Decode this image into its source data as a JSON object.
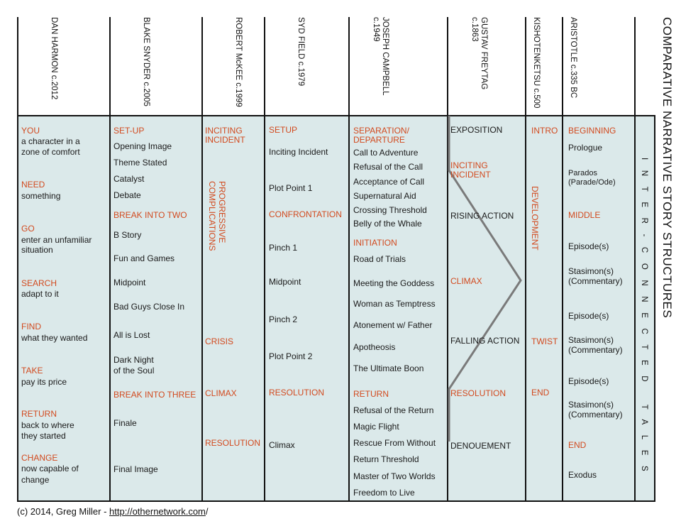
{
  "title": "COMPARATIVE NARRATIVE STORY STRUCTURES",
  "subtitle": "INTER-CONNECTED TALES",
  "footer": {
    "prefix": "(c) 2014, Greg Miller - ",
    "link": "http://othernetwork.com",
    "suffix": "/"
  },
  "colors": {
    "accent": "#d24a1f",
    "panel": "#dbe9ea",
    "curve": "#7a7a7a"
  },
  "columns": [
    {
      "header": "DAN HARMON c.2012",
      "items": [
        {
          "text": "YOU",
          "accent": true
        },
        {
          "text": "a character in a"
        },
        {
          "text": "zone of comfort"
        },
        {
          "text": "NEED",
          "accent": true
        },
        {
          "text": "something"
        },
        {
          "text": "GO",
          "accent": true
        },
        {
          "text": "enter an unfamiliar"
        },
        {
          "text": "situation"
        },
        {
          "text": "SEARCH",
          "accent": true
        },
        {
          "text": "adapt to it"
        },
        {
          "text": "FIND",
          "accent": true
        },
        {
          "text": "what they wanted"
        },
        {
          "text": "TAKE",
          "accent": true
        },
        {
          "text": "pay its price"
        },
        {
          "text": "RETURN",
          "accent": true
        },
        {
          "text": "back to where"
        },
        {
          "text": "they started"
        },
        {
          "text": "CHANGE",
          "accent": true
        },
        {
          "text": "now capable of"
        },
        {
          "text": "change"
        }
      ]
    },
    {
      "header": "BLAKE SNYDER c.2005",
      "items": [
        {
          "text": "SET-UP",
          "accent": true
        },
        {
          "text": "Opening Image"
        },
        {
          "text": "Theme Stated"
        },
        {
          "text": "Catalyst"
        },
        {
          "text": "Debate"
        },
        {
          "text": "BREAK INTO TWO",
          "accent": true
        },
        {
          "text": "B Story"
        },
        {
          "text": "Fun and Games"
        },
        {
          "text": "Midpoint"
        },
        {
          "text": "Bad Guys Close In"
        },
        {
          "text": "All is Lost"
        },
        {
          "text": "Dark Night"
        },
        {
          "text": "of the Soul"
        },
        {
          "text": "BREAK INTO THREE",
          "accent": true
        },
        {
          "text": "Finale"
        },
        {
          "text": "Final Image"
        }
      ]
    },
    {
      "header": "ROBERT McKEE c.1999",
      "items": [
        {
          "text": "INCITING",
          "accent": true
        },
        {
          "text": "INCIDENT",
          "accent": true
        },
        {
          "text": "PROGRESSIVE COMPLICATIONS",
          "accent": true,
          "vertical": true
        },
        {
          "text": "CRISIS",
          "accent": true
        },
        {
          "text": "CLIMAX",
          "accent": true
        },
        {
          "text": "RESOLUTION",
          "accent": true
        }
      ]
    },
    {
      "header": "SYD FIELD c.1979",
      "items": [
        {
          "text": "SETUP",
          "accent": true
        },
        {
          "text": "Inciting Incident"
        },
        {
          "text": "Plot Point 1"
        },
        {
          "text": "CONFRONTATION",
          "accent": true
        },
        {
          "text": "Pinch 1"
        },
        {
          "text": "Midpoint"
        },
        {
          "text": "Pinch 2"
        },
        {
          "text": "Plot Point 2"
        },
        {
          "text": "RESOLUTION",
          "accent": true
        },
        {
          "text": "Climax"
        }
      ]
    },
    {
      "header": "JOSEPH CAMPBELL c.1949",
      "items": [
        {
          "text": "SEPARATION/",
          "accent": true
        },
        {
          "text": "DEPARTURE",
          "accent": true
        },
        {
          "text": "Call to Adventure"
        },
        {
          "text": "Refusal of the Call"
        },
        {
          "text": "Acceptance of Call"
        },
        {
          "text": "Supernatural Aid"
        },
        {
          "text": "Crossing Threshold"
        },
        {
          "text": "Belly of the Whale"
        },
        {
          "text": "INITIATION",
          "accent": true
        },
        {
          "text": "Road of Trials"
        },
        {
          "text": "Meeting the Goddess"
        },
        {
          "text": "Woman as Temptress"
        },
        {
          "text": "Atonement w/ Father"
        },
        {
          "text": "Apotheosis"
        },
        {
          "text": "The Ultimate Boon"
        },
        {
          "text": "RETURN",
          "accent": true
        },
        {
          "text": "Refusal of the Return"
        },
        {
          "text": "Magic Flight"
        },
        {
          "text": "Rescue From Without"
        },
        {
          "text": "Return Threshold"
        },
        {
          "text": "Master of Two Worlds"
        },
        {
          "text": "Freedom to Live"
        }
      ]
    },
    {
      "header": "GUSTAV FREYTAG c.1863",
      "items": [
        {
          "text": "EXPOSITION"
        },
        {
          "text": "INCITING",
          "accent": true
        },
        {
          "text": "INCIDENT",
          "accent": true
        },
        {
          "text": "RISING ACTION"
        },
        {
          "text": "CLIMAX",
          "accent": true
        },
        {
          "text": "FALLING ACTION"
        },
        {
          "text": "RESOLUTION",
          "accent": true
        },
        {
          "text": "DENOUEMENT"
        }
      ]
    },
    {
      "header": "KISHOTENKETSU c.500",
      "items": [
        {
          "text": "INTRO",
          "accent": true
        },
        {
          "text": "DEVELOPMENT",
          "accent": true,
          "vertical": true
        },
        {
          "text": "TWIST",
          "accent": true
        },
        {
          "text": "END",
          "accent": true
        }
      ]
    },
    {
      "header": "ARISTOTLE c.335 BC",
      "items": [
        {
          "text": "BEGINNING",
          "accent": true
        },
        {
          "text": "Prologue"
        },
        {
          "text": "Parados"
        },
        {
          "text": "(Parade/Ode)"
        },
        {
          "text": "MIDDLE",
          "accent": true
        },
        {
          "text": "Episode(s)"
        },
        {
          "text": "Stasimon(s)"
        },
        {
          "text": "(Commentary)"
        },
        {
          "text": "Episode(s)"
        },
        {
          "text": "Stasimon(s)"
        },
        {
          "text": "(Commentary)"
        },
        {
          "text": "Episode(s)"
        },
        {
          "text": "Stasimon(s)"
        },
        {
          "text": "(Commentary)"
        },
        {
          "text": "END",
          "accent": true
        },
        {
          "text": "Exodus"
        }
      ]
    }
  ]
}
